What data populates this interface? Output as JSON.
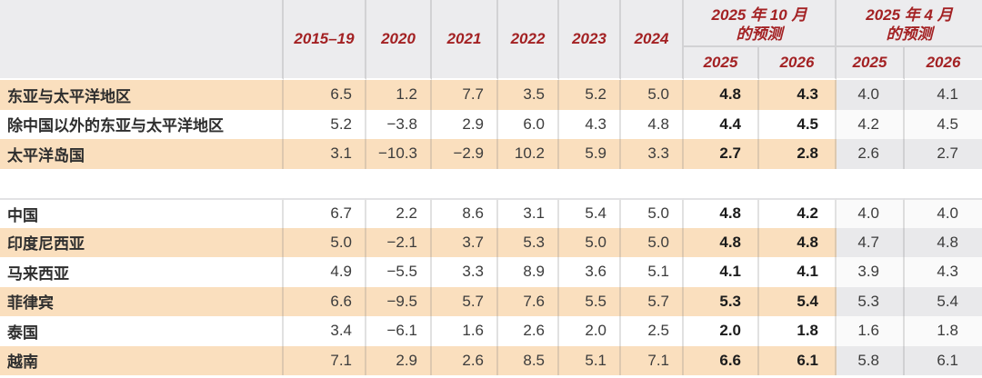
{
  "table": {
    "header": {
      "year_columns": [
        "2015–19",
        "2020",
        "2021",
        "2022",
        "2023",
        "2024"
      ],
      "forecast_groups": [
        {
          "title_line1": "2025 年 10 月",
          "title_line2": "的预测",
          "sub_columns": [
            "2025",
            "2026"
          ]
        },
        {
          "title_line1": "2025 年 4 月",
          "title_line2": "的预测",
          "sub_columns": [
            "2025",
            "2026"
          ]
        }
      ]
    },
    "groups": [
      {
        "rows": [
          {
            "label": "东亚与太平洋地区",
            "values": [
              "6.5",
              "1.2",
              "7.7",
              "3.5",
              "5.2",
              "5.0",
              "4.8",
              "4.3",
              "4.0",
              "4.1"
            ]
          },
          {
            "label": "除中国以外的东亚与太平洋地区",
            "values": [
              "5.2",
              "−3.8",
              "2.9",
              "6.0",
              "4.3",
              "4.8",
              "4.4",
              "4.5",
              "4.2",
              "4.5"
            ]
          },
          {
            "label": "太平洋岛国",
            "values": [
              "3.1",
              "−10.3",
              "−2.9",
              "10.2",
              "5.9",
              "3.3",
              "2.7",
              "2.8",
              "2.6",
              "2.7"
            ]
          }
        ]
      },
      {
        "rows": [
          {
            "label": "中国",
            "values": [
              "6.7",
              "2.2",
              "8.6",
              "3.1",
              "5.4",
              "5.0",
              "4.8",
              "4.2",
              "4.0",
              "4.0"
            ]
          },
          {
            "label": "印度尼西亚",
            "values": [
              "5.0",
              "−2.1",
              "3.7",
              "5.3",
              "5.0",
              "5.0",
              "4.8",
              "4.8",
              "4.7",
              "4.8"
            ]
          },
          {
            "label": "马来西亚",
            "values": [
              "4.9",
              "−5.5",
              "3.3",
              "8.9",
              "3.6",
              "5.1",
              "4.1",
              "4.1",
              "3.9",
              "4.3"
            ]
          },
          {
            "label": "菲律宾",
            "values": [
              "6.6",
              "−9.5",
              "5.7",
              "7.6",
              "5.5",
              "5.7",
              "5.3",
              "5.4",
              "5.3",
              "5.4"
            ]
          },
          {
            "label": "泰国",
            "values": [
              "3.4",
              "−6.1",
              "1.6",
              "2.6",
              "2.0",
              "2.5",
              "2.0",
              "1.8",
              "1.6",
              "1.8"
            ]
          },
          {
            "label": "越南",
            "values": [
              "7.1",
              "2.9",
              "2.6",
              "8.5",
              "5.1",
              "7.1",
              "6.6",
              "6.1",
              "5.8",
              "6.1"
            ]
          }
        ]
      }
    ]
  },
  "colors": {
    "accent_red": "#a32123",
    "row_highlight": "#fadfbe",
    "header_bg": "#ececee",
    "forecast_shaded_col": "#e9e9eb"
  }
}
